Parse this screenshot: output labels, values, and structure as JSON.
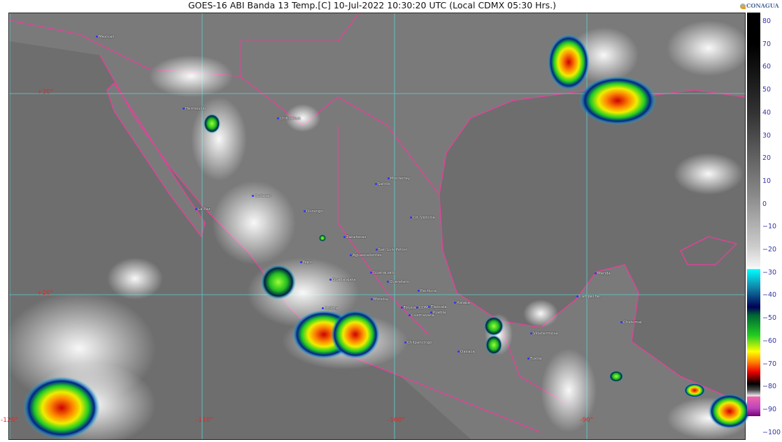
{
  "header": {
    "title": "GOES-16 ABI Banda 13 Temp.[C] 10-Jul-2022 10:30:20 UTC (Local CDMX  05:30 Hrs.)",
    "logo": "CONAGUA"
  },
  "map": {
    "latitude_labels": [
      "+30°",
      "+20°"
    ],
    "longitude_labels": [
      "-120°",
      "-110°",
      "-100°",
      "-90°"
    ],
    "cities": [
      "Mexicali",
      "Hermosillo",
      "Chihuahua",
      "Culiacan",
      "La Paz",
      "Durango",
      "Saltillo",
      "Monterrey",
      "Cd. Victoria",
      "Zacatecas",
      "San Luis Potosi",
      "Aguascalientes",
      "Tepic",
      "Guadalajara",
      "Guanajuato",
      "Queretaro",
      "Pachuca",
      "Morelia",
      "Colima",
      "Toluca",
      "CDMX",
      "Tlaxcala",
      "Puebla",
      "Cuernavaca",
      "Xalapa",
      "Chilpancingo",
      "Oaxaca",
      "Villahermosa",
      "Tuxtla",
      "Campeche",
      "Merida",
      "Chetumal"
    ],
    "colors": {
      "background": "#6e6e6e",
      "coastline": "#e8409a",
      "grid": "#5fd0d0",
      "label": "#e22222"
    }
  },
  "colorbar": {
    "ticks": [
      "80",
      "70",
      "60",
      "50",
      "40",
      "30",
      "20",
      "10",
      "0",
      "−10",
      "−20",
      "−30",
      "−40",
      "−50",
      "−60",
      "−70",
      "−80",
      "−90",
      "−100"
    ],
    "unit": "°C"
  }
}
